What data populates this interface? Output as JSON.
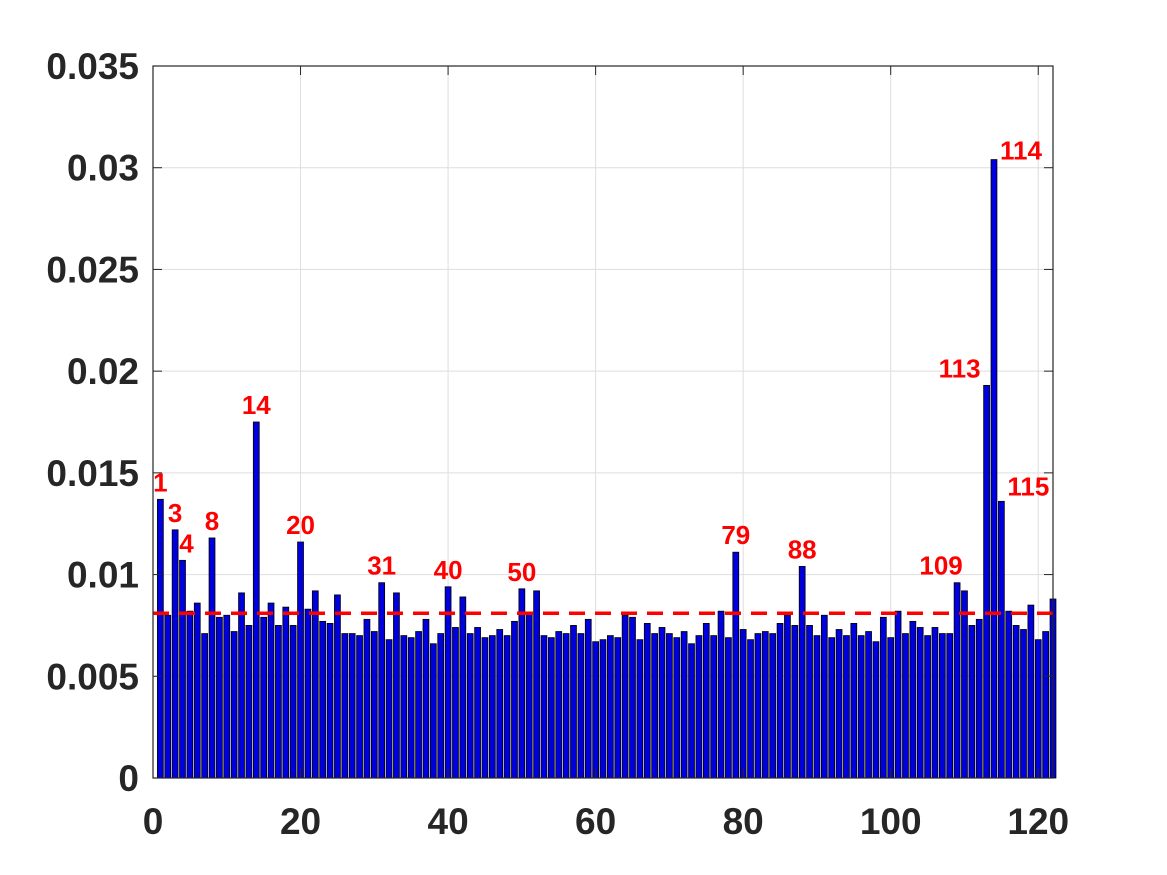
{
  "chart_data": {
    "type": "bar",
    "title": "",
    "xlabel": "",
    "ylabel": "",
    "xlim": [
      0,
      122
    ],
    "ylim": [
      0,
      0.035
    ],
    "grid": true,
    "bar_color": "#0000dd",
    "threshold": {
      "value": 0.0081,
      "style": "dashed",
      "color": "#ff0000"
    },
    "x_ticks": [
      {
        "value": 0,
        "label": "0"
      },
      {
        "value": 20,
        "label": "20"
      },
      {
        "value": 40,
        "label": "40"
      },
      {
        "value": 60,
        "label": "60"
      },
      {
        "value": 80,
        "label": "80"
      },
      {
        "value": 100,
        "label": "100"
      },
      {
        "value": 120,
        "label": "120"
      }
    ],
    "y_ticks": [
      {
        "value": 0,
        "label": "0"
      },
      {
        "value": 0.005,
        "label": "0.005"
      },
      {
        "value": 0.01,
        "label": "0.01"
      },
      {
        "value": 0.015,
        "label": "0.015"
      },
      {
        "value": 0.02,
        "label": "0.02"
      },
      {
        "value": 0.025,
        "label": "0.025"
      },
      {
        "value": 0.03,
        "label": "0.03"
      },
      {
        "value": 0.035,
        "label": "0.035"
      }
    ],
    "x": [
      1,
      2,
      3,
      4,
      5,
      6,
      7,
      8,
      9,
      10,
      11,
      12,
      13,
      14,
      15,
      16,
      17,
      18,
      19,
      20,
      21,
      22,
      23,
      24,
      25,
      26,
      27,
      28,
      29,
      30,
      31,
      32,
      33,
      34,
      35,
      36,
      37,
      38,
      39,
      40,
      41,
      42,
      43,
      44,
      45,
      46,
      47,
      48,
      49,
      50,
      51,
      52,
      53,
      54,
      55,
      56,
      57,
      58,
      59,
      60,
      61,
      62,
      63,
      64,
      65,
      66,
      67,
      68,
      69,
      70,
      71,
      72,
      73,
      74,
      75,
      76,
      77,
      78,
      79,
      80,
      81,
      82,
      83,
      84,
      85,
      86,
      87,
      88,
      89,
      90,
      91,
      92,
      93,
      94,
      95,
      96,
      97,
      98,
      99,
      100,
      101,
      102,
      103,
      104,
      105,
      106,
      107,
      108,
      109,
      110,
      111,
      112,
      113,
      114,
      115,
      116,
      117,
      118,
      119,
      120,
      121,
      122
    ],
    "values": [
      0.0137,
      0.008,
      0.0122,
      0.0107,
      0.0082,
      0.0086,
      0.0071,
      0.0118,
      0.0079,
      0.008,
      0.0072,
      0.0091,
      0.0075,
      0.0175,
      0.0079,
      0.0086,
      0.0075,
      0.0084,
      0.0075,
      0.0116,
      0.0083,
      0.0092,
      0.0077,
      0.0076,
      0.009,
      0.0071,
      0.0071,
      0.007,
      0.0078,
      0.0072,
      0.0096,
      0.0068,
      0.0091,
      0.007,
      0.0069,
      0.0072,
      0.0078,
      0.0066,
      0.0071,
      0.0094,
      0.0074,
      0.0089,
      0.0071,
      0.0074,
      0.0069,
      0.007,
      0.0073,
      0.007,
      0.0077,
      0.0093,
      0.0081,
      0.0092,
      0.007,
      0.0069,
      0.0072,
      0.0071,
      0.0075,
      0.0071,
      0.0078,
      0.0067,
      0.0068,
      0.007,
      0.0069,
      0.008,
      0.0079,
      0.0068,
      0.0076,
      0.0071,
      0.0074,
      0.0071,
      0.0069,
      0.0072,
      0.0066,
      0.007,
      0.0076,
      0.007,
      0.0082,
      0.0069,
      0.0111,
      0.0073,
      0.0068,
      0.0071,
      0.0072,
      0.0071,
      0.0076,
      0.008,
      0.0075,
      0.0104,
      0.0075,
      0.007,
      0.008,
      0.0069,
      0.0073,
      0.007,
      0.0076,
      0.007,
      0.0072,
      0.0067,
      0.0079,
      0.0069,
      0.0082,
      0.0071,
      0.0077,
      0.0074,
      0.007,
      0.0074,
      0.0071,
      0.0071,
      0.0096,
      0.0092,
      0.0075,
      0.0078,
      0.0193,
      0.0304,
      0.0136,
      0.0082,
      0.0075,
      0.0073,
      0.0085,
      0.0068,
      0.0072,
      0.0088
    ],
    "annotations": [
      {
        "x": 1,
        "label": "1"
      },
      {
        "x": 3,
        "label": "3"
      },
      {
        "x": 4,
        "label": "4"
      },
      {
        "x": 8,
        "label": "8"
      },
      {
        "x": 14,
        "label": "14"
      },
      {
        "x": 20,
        "label": "20"
      },
      {
        "x": 31,
        "label": "31"
      },
      {
        "x": 40,
        "label": "40"
      },
      {
        "x": 50,
        "label": "50"
      },
      {
        "x": 79,
        "label": "79"
      },
      {
        "x": 88,
        "label": "88"
      },
      {
        "x": 109,
        "label": "109"
      },
      {
        "x": 113,
        "label": "113"
      },
      {
        "x": 114,
        "label": "114"
      },
      {
        "x": 115,
        "label": "115"
      }
    ]
  }
}
